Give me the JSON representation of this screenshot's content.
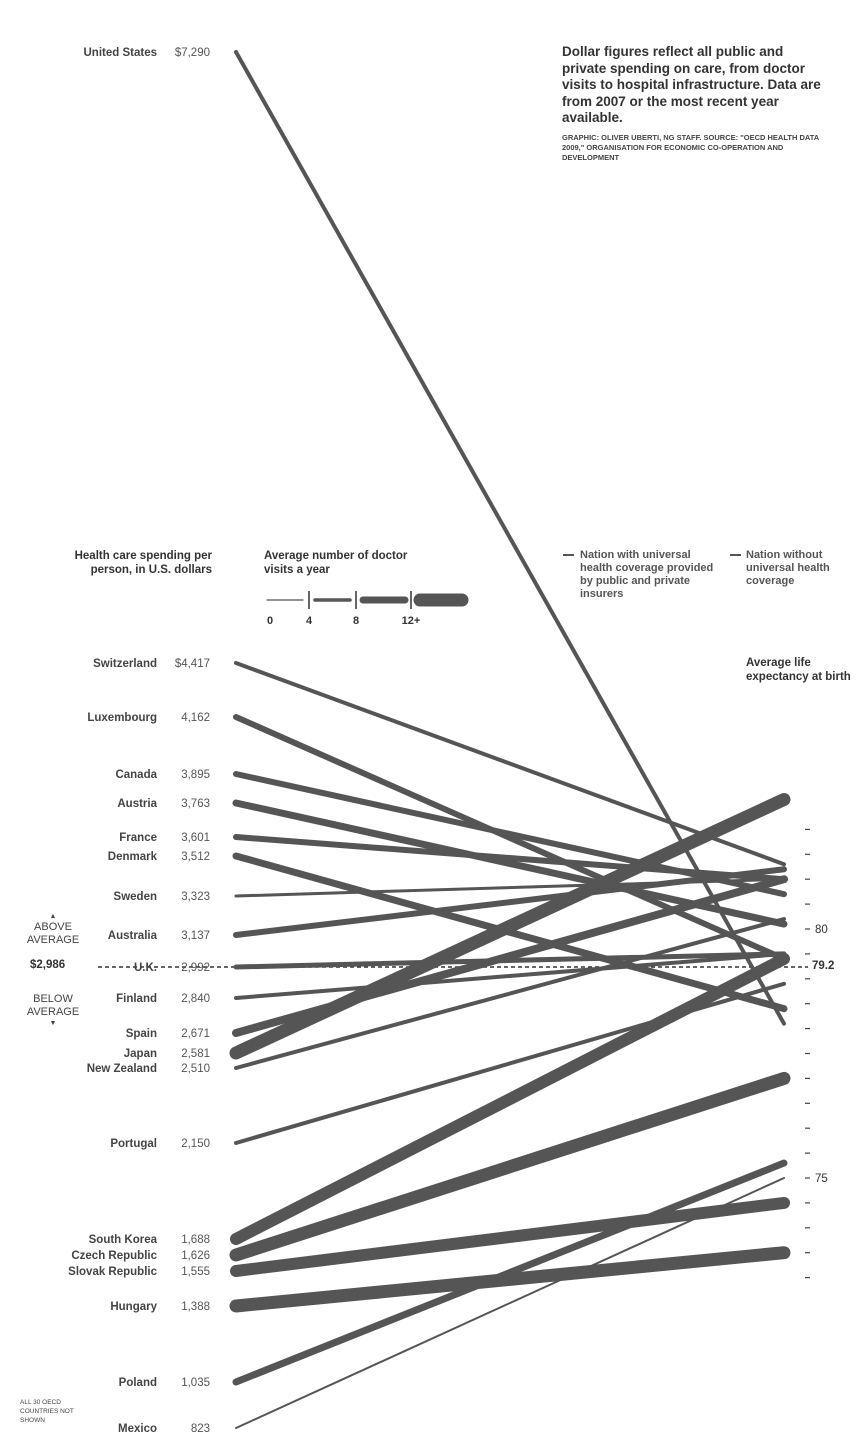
{
  "note": {
    "text": "Dollar figures reflect all public and private spending on care, from doctor visits to hospital infrastructure. Data are from 2007 or the most recent year available.",
    "source": "GRAPHIC: OLIVER UBERTI, NG STAFF. SOURCE: \"OECD HEALTH DATA 2009,\" ORGANISATION FOR ECONOMIC CO-OPERATION AND DEVELOPMENT"
  },
  "headers": {
    "spending": "Health care spending per person, in U.S. dollars",
    "visits": "Average number of doctor visits a year",
    "life": "Average life expectancy at birth"
  },
  "key": {
    "universal": "Nation with universal health coverage provided by public and private insurers",
    "no_universal": "Nation without universal health coverage"
  },
  "side": {
    "above": "ABOVE AVERAGE",
    "below": "BELOW AVERAGE",
    "arrow_up": "▲",
    "arrow_down": "▼"
  },
  "average": {
    "spending_label": "$2,986",
    "life_label": "79.2"
  },
  "footnote": "ALL 30 OECD COUNTRIES NOT SHOWN",
  "colors": {
    "line": "#555555",
    "text": "#333333",
    "background": "#ffffff"
  },
  "chart_data": {
    "type": "slope",
    "left_axis": {
      "title": "Health care spending per person, in U.S. dollars",
      "range": [
        823,
        7290
      ],
      "average": 2986,
      "average_label": "$2,986"
    },
    "right_axis": {
      "title": "Average life expectancy at birth",
      "range": [
        73,
        82
      ],
      "ticks": [
        73,
        73.5,
        74,
        74.5,
        75,
        75.5,
        76,
        76.5,
        77,
        77.5,
        78,
        78.5,
        79,
        79.5,
        80,
        80.5,
        81,
        81.5,
        82
      ],
      "tick_labels": [
        {
          "value": 80,
          "label": "80"
        },
        {
          "value": 75,
          "label": "75"
        }
      ],
      "average": 79.2,
      "average_label": "79.2"
    },
    "visits_legend": {
      "title": "Average number of doctor visits a year",
      "tick_labels": [
        "0",
        "4",
        "8",
        "12+"
      ]
    },
    "series": [
      {
        "country": "United States",
        "spending": 7290,
        "spending_label": "$7,290",
        "life": 78.1,
        "visits": 4,
        "universal": false
      },
      {
        "country": "Switzerland",
        "spending": 4417,
        "spending_label": "$4,417",
        "life": 81.3,
        "visits": 4,
        "universal": true
      },
      {
        "country": "Luxembourg",
        "spending": 4162,
        "spending_label": "4,162",
        "life": 79.4,
        "visits": 6,
        "universal": true
      },
      {
        "country": "Canada",
        "spending": 3895,
        "spending_label": "3,895",
        "life": 80.7,
        "visits": 6,
        "universal": true
      },
      {
        "country": "Austria",
        "spending": 3763,
        "spending_label": "3,763",
        "life": 80.1,
        "visits": 7,
        "universal": true
      },
      {
        "country": "France",
        "spending": 3601,
        "spending_label": "3,601",
        "life": 81.0,
        "visits": 6,
        "universal": true
      },
      {
        "country": "Denmark",
        "spending": 3512,
        "spending_label": "3,512",
        "life": 78.4,
        "visits": 7,
        "universal": true
      },
      {
        "country": "Sweden",
        "spending": 3323,
        "spending_label": "3,323",
        "life": 81.0,
        "visits": 3,
        "universal": true
      },
      {
        "country": "Australia",
        "spending": 3137,
        "spending_label": "3,137",
        "life": 81.2,
        "visits": 6,
        "universal": true
      },
      {
        "country": "U.K.",
        "spending": 2992,
        "spending_label": "2,992",
        "life": 79.5,
        "visits": 5,
        "universal": true
      },
      {
        "country": "Finland",
        "spending": 2840,
        "spending_label": "2,840",
        "life": 79.5,
        "visits": 4,
        "universal": true
      },
      {
        "country": "Spain",
        "spending": 2671,
        "spending_label": "2,671",
        "life": 81.0,
        "visits": 8,
        "universal": true
      },
      {
        "country": "Japan",
        "spending": 2581,
        "spending_label": "2,581",
        "life": 82.6,
        "visits": 13,
        "universal": true
      },
      {
        "country": "New Zealand",
        "spending": 2510,
        "spending_label": "2,510",
        "life": 80.2,
        "visits": 4,
        "universal": true
      },
      {
        "country": "Portugal",
        "spending": 2150,
        "spending_label": "2,150",
        "life": 78.9,
        "visits": 4,
        "universal": true
      },
      {
        "country": "South Korea",
        "spending": 1688,
        "spending_label": "1,688",
        "life": 79.4,
        "visits": 12,
        "universal": true
      },
      {
        "country": "Czech Republic",
        "spending": 1626,
        "spending_label": "1,626",
        "life": 77.0,
        "visits": 13,
        "universal": true
      },
      {
        "country": "Slovak Republic",
        "spending": 1555,
        "spending_label": "1,555",
        "life": 74.5,
        "visits": 12,
        "universal": true
      },
      {
        "country": "Hungary",
        "spending": 1388,
        "spending_label": "1,388",
        "life": 73.5,
        "visits": 13,
        "universal": true
      },
      {
        "country": "Poland",
        "spending": 1035,
        "spending_label": "1,035",
        "life": 75.3,
        "visits": 7,
        "universal": true
      },
      {
        "country": "Mexico",
        "spending": 823,
        "spending_label": "823",
        "life": 75.0,
        "visits": 2,
        "universal": false
      }
    ]
  }
}
